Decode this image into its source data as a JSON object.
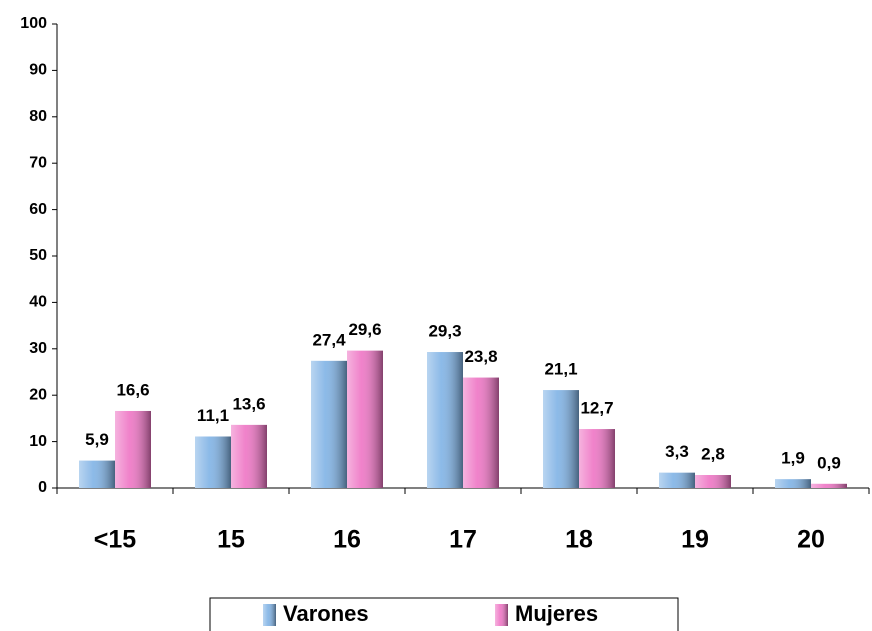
{
  "chart_data": {
    "type": "bar",
    "categories": [
      "<15",
      "15",
      "16",
      "17",
      "18",
      "19",
      "20"
    ],
    "series": [
      {
        "name": "Varones",
        "color": "#7fb2e5",
        "values": [
          5.9,
          11.1,
          27.4,
          29.3,
          21.1,
          3.3,
          1.9
        ],
        "value_labels": [
          "5,9",
          "11,1",
          "27,4",
          "29,3",
          "21,1",
          "3,3",
          "1,9"
        ]
      },
      {
        "name": "Mujeres",
        "color": "#ee74c4",
        "values": [
          16.6,
          13.6,
          29.6,
          23.8,
          12.7,
          2.8,
          0.9
        ],
        "value_labels": [
          "16,6",
          "13,6",
          "29,6",
          "23,8",
          "12,7",
          "2,8",
          "0,9"
        ]
      }
    ],
    "ylim": [
      0,
      100
    ],
    "yticks": [
      0,
      10,
      20,
      30,
      40,
      50,
      60,
      70,
      80,
      90,
      100
    ],
    "grid": false,
    "legend": "bottom"
  }
}
